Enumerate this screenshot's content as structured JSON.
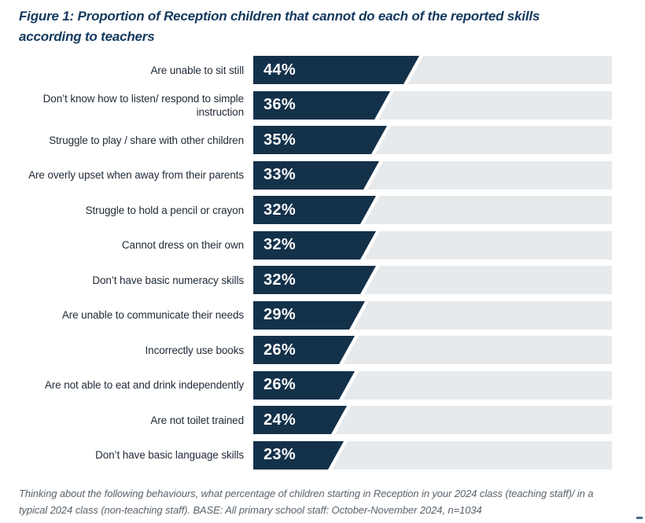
{
  "figure": {
    "title": "Figure 1: Proportion of Reception children that cannot do each of the reported skills according to teachers",
    "footnote": "Thinking about the following behaviours, what percentage of children starting in Reception in your 2024 class (teaching staff)/ in a typical 2024 class (non-teaching staff). BASE: All primary school staff: October-November 2024, n=1034"
  },
  "colors": {
    "bar": "#14314a",
    "track": "#e7eaec",
    "title_text": "#14395e",
    "label_text": "#1f2a36",
    "footnote_text": "#5a646e",
    "value_text": "#ffffff"
  },
  "chart_data": {
    "type": "bar",
    "orientation": "horizontal",
    "title": "Figure 1: Proportion of Reception children that cannot do each of the reported skills according to teachers",
    "categories": [
      "Are unable to sit still",
      "Don’t know how to listen/ respond to simple instruction",
      "Struggle to play / share with other children",
      "Are overly upset when away from their parents",
      "Struggle to hold a pencil or crayon",
      "Cannot dress on their own",
      "Don’t have basic numeracy skills",
      "Are unable to communicate their needs",
      "Incorrectly use books",
      "Are not able to eat and drink independently",
      "Are not toilet trained",
      "Don’t have basic language skills"
    ],
    "values": [
      44,
      36,
      35,
      33,
      32,
      32,
      32,
      29,
      26,
      26,
      24,
      23
    ],
    "value_suffix": "%",
    "xlim": [
      0,
      100
    ],
    "grid": false,
    "legend": false,
    "bar_style": "angled-right-edge-on-full-width-track"
  }
}
